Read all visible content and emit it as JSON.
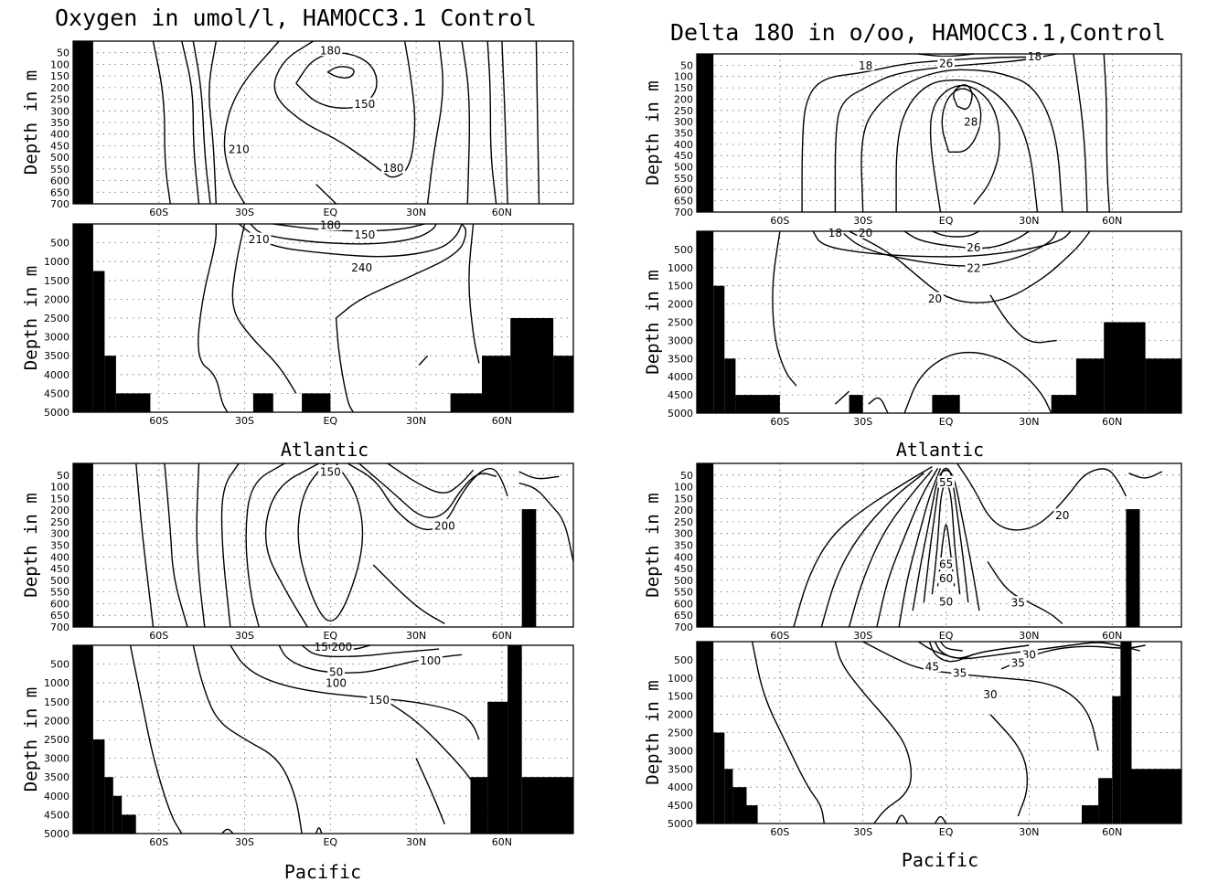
{
  "figure": {
    "titles": {
      "oxygen": "Oxygen in umol/l, HAMOCC3.1 Control",
      "delta": "Delta 18O in o/oo, HAMOCC3.1,Control"
    },
    "basins": {
      "atlantic": "Atlantic",
      "pacific": "Pacific"
    }
  },
  "chart_data": [
    {
      "id": "oxy-atl-upper",
      "type": "contour",
      "ylabel": "Depth in m",
      "y_ticks": [
        "50",
        "100",
        "150",
        "200",
        "250",
        "300",
        "350",
        "400",
        "450",
        "500",
        "550",
        "600",
        "650",
        "700"
      ],
      "x_ticks": [
        "60S",
        "30S",
        "EQ",
        "30N",
        "60N"
      ],
      "ylim": [
        0,
        700
      ],
      "contour_labels": [
        {
          "text": "180",
          "lat": 0,
          "depth": 40
        },
        {
          "text": "150",
          "lat": 12,
          "depth": 270
        },
        {
          "text": "210",
          "lat": -32,
          "depth": 465
        },
        {
          "text": "180",
          "lat": 22,
          "depth": 545
        }
      ]
    },
    {
      "id": "oxy-atl-deep",
      "type": "contour",
      "ylabel": "Depth in m",
      "y_ticks": [
        "500",
        "1000",
        "1500",
        "2000",
        "2500",
        "3000",
        "3500",
        "4000",
        "4500",
        "5000"
      ],
      "x_ticks": [
        "60S",
        "30S",
        "EQ",
        "30N",
        "60N"
      ],
      "ylim": [
        0,
        5000
      ],
      "contour_labels": [
        {
          "text": "180",
          "lat": 0,
          "depth": 30
        },
        {
          "text": "210",
          "lat": -25,
          "depth": 400
        },
        {
          "text": "150",
          "lat": 12,
          "depth": 280
        },
        {
          "text": "240",
          "lat": 11,
          "depth": 1150
        }
      ]
    },
    {
      "id": "oxy-pac-upper",
      "type": "contour",
      "ylabel": "Depth in m",
      "y_ticks": [
        "50",
        "100",
        "150",
        "200",
        "250",
        "300",
        "350",
        "400",
        "450",
        "500",
        "550",
        "600",
        "650",
        "700"
      ],
      "x_ticks": [
        "60S",
        "30S",
        "EQ",
        "30N",
        "60N"
      ],
      "ylim": [
        0,
        700
      ],
      "contour_labels": [
        {
          "text": "150",
          "lat": 0,
          "depth": 35
        },
        {
          "text": "200",
          "lat": 40,
          "depth": 265
        }
      ]
    },
    {
      "id": "oxy-pac-deep",
      "type": "contour",
      "ylabel": "Depth in m",
      "y_ticks": [
        "500",
        "1000",
        "1500",
        "2000",
        "2500",
        "3000",
        "3500",
        "4000",
        "4500",
        "5000"
      ],
      "x_ticks": [
        "60S",
        "30S",
        "EQ",
        "30N",
        "60N"
      ],
      "ylim": [
        0,
        5000
      ],
      "contour_labels": [
        {
          "text": "150",
          "lat": -2,
          "depth": 40
        },
        {
          "text": "200",
          "lat": 4,
          "depth": 40
        },
        {
          "text": "100",
          "lat": 35,
          "depth": 400
        },
        {
          "text": "50",
          "lat": 2,
          "depth": 700
        },
        {
          "text": "100",
          "lat": 2,
          "depth": 1000
        },
        {
          "text": "150",
          "lat": 17,
          "depth": 1450
        }
      ]
    },
    {
      "id": "d18o-atl-upper",
      "type": "contour",
      "ylabel": "Depth in m",
      "y_ticks": [
        "50",
        "100",
        "150",
        "200",
        "250",
        "300",
        "350",
        "400",
        "450",
        "500",
        "550",
        "600",
        "650",
        "700"
      ],
      "x_ticks": [
        "60S",
        "30S",
        "EQ",
        "30N",
        "60N"
      ],
      "ylim": [
        0,
        700
      ],
      "contour_labels": [
        {
          "text": "18",
          "lat": -29,
          "depth": 50
        },
        {
          "text": "26",
          "lat": 0,
          "depth": 40
        },
        {
          "text": "18",
          "lat": 32,
          "depth": 10
        },
        {
          "text": "28",
          "lat": 9,
          "depth": 300
        }
      ]
    },
    {
      "id": "d18o-atl-deep",
      "type": "contour",
      "ylabel": "Depth in m",
      "y_ticks": [
        "500",
        "1000",
        "1500",
        "2000",
        "2500",
        "3000",
        "3500",
        "4000",
        "4500",
        "5000"
      ],
      "x_ticks": [
        "60S",
        "30S",
        "EQ",
        "30N",
        "60N"
      ],
      "ylim": [
        0,
        5000
      ],
      "contour_labels": [
        {
          "text": "18",
          "lat": -40,
          "depth": 40
        },
        {
          "text": "20",
          "lat": -29,
          "depth": 40
        },
        {
          "text": "26",
          "lat": 10,
          "depth": 440
        },
        {
          "text": "22",
          "lat": 10,
          "depth": 1000
        },
        {
          "text": "20",
          "lat": -4,
          "depth": 1850
        }
      ]
    },
    {
      "id": "d18o-pac-upper",
      "type": "contour",
      "ylabel": "Depth in m",
      "y_ticks": [
        "50",
        "100",
        "150",
        "200",
        "250",
        "300",
        "350",
        "400",
        "450",
        "500",
        "550",
        "600",
        "650",
        "700"
      ],
      "x_ticks": [
        "60S",
        "30S",
        "EQ",
        "30N",
        "60N"
      ],
      "ylim": [
        0,
        700
      ],
      "contour_labels": [
        {
          "text": "55",
          "lat": 0,
          "depth": 80
        },
        {
          "text": "20",
          "lat": 42,
          "depth": 220
        },
        {
          "text": "65",
          "lat": 0,
          "depth": 430
        },
        {
          "text": "60",
          "lat": 0,
          "depth": 490
        },
        {
          "text": "50",
          "lat": 0,
          "depth": 590
        },
        {
          "text": "35",
          "lat": 26,
          "depth": 595
        }
      ]
    },
    {
      "id": "d18o-pac-deep",
      "type": "contour",
      "ylabel": "Depth in m",
      "y_ticks": [
        "500",
        "1000",
        "1500",
        "2000",
        "2500",
        "3000",
        "3500",
        "4000",
        "4500",
        "5000"
      ],
      "x_ticks": [
        "60S",
        "30S",
        "EQ",
        "30N",
        "60N"
      ],
      "ylim": [
        0,
        5000
      ],
      "contour_labels": [
        {
          "text": "30",
          "lat": 30,
          "depth": 350
        },
        {
          "text": "35",
          "lat": 26,
          "depth": 580
        },
        {
          "text": "45",
          "lat": -5,
          "depth": 680
        },
        {
          "text": "35",
          "lat": 5,
          "depth": 860
        },
        {
          "text": "30",
          "lat": 16,
          "depth": 1450
        }
      ]
    }
  ]
}
